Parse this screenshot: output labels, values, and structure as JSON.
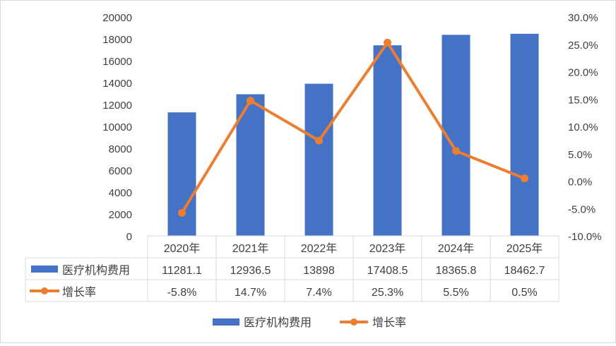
{
  "chart_data": {
    "type": "bar",
    "categories": [
      "2020年",
      "2021年",
      "2022年",
      "2023年",
      "2024年",
      "2025年"
    ],
    "series": [
      {
        "name": "医疗机构费用",
        "type": "bar",
        "axis": "left",
        "color": "#4472C4",
        "values": [
          11281.1,
          12936.5,
          13898,
          17408.5,
          18365.8,
          18462.7
        ],
        "table_labels": [
          "11281.1",
          "12936.5",
          "13898",
          "17408.5",
          "18365.8",
          "18462.7"
        ]
      },
      {
        "name": "增长率",
        "type": "line",
        "axis": "right",
        "color": "#ED7D31",
        "values": [
          -5.8,
          14.7,
          7.4,
          25.3,
          5.5,
          0.5
        ],
        "table_labels": [
          "-5.8%",
          "14.7%",
          "7.4%",
          "25.3%",
          "5.5%",
          "0.5%"
        ]
      }
    ],
    "y_left": {
      "min": 0,
      "max": 20000,
      "ticks": [
        "0",
        "2000",
        "4000",
        "6000",
        "8000",
        "10000",
        "12000",
        "14000",
        "16000",
        "18000",
        "20000"
      ]
    },
    "y_right": {
      "min": -10,
      "max": 30,
      "ticks": [
        "-10.0%",
        "-5.0%",
        "0.0%",
        "5.0%",
        "10.0%",
        "15.0%",
        "20.0%",
        "25.0%",
        "30.0%"
      ]
    },
    "grid": false,
    "data_table": true,
    "legend_position": "bottom",
    "legend": [
      "医疗机构费用",
      "增长率"
    ]
  }
}
